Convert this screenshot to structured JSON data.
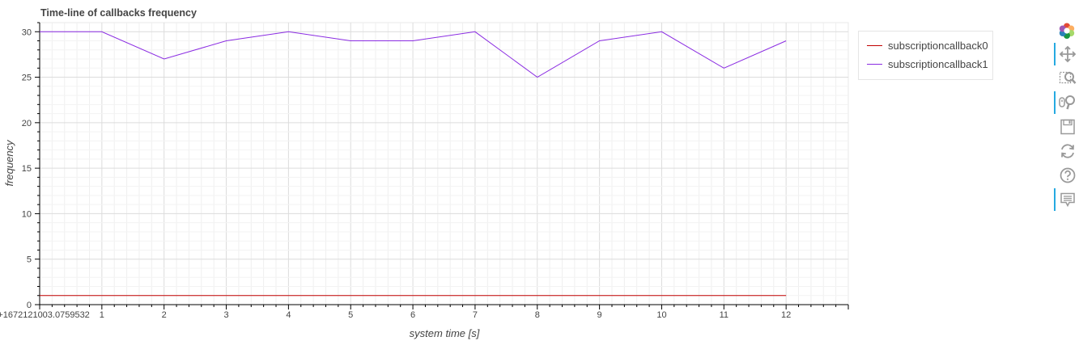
{
  "chart_data": {
    "type": "line",
    "title": "Time-line of callbacks frequency",
    "xlabel": "system time [s]",
    "ylabel": "frequency",
    "xlim": [
      0,
      13
    ],
    "ylim": [
      0,
      31
    ],
    "grid": true,
    "x_tick_origin_label": "0+1672121003.0759532",
    "x_ticks": [
      1,
      2,
      3,
      4,
      5,
      6,
      7,
      8,
      9,
      10,
      11,
      12
    ],
    "y_ticks": [
      0,
      5,
      10,
      15,
      20,
      25,
      30
    ],
    "legend_position": "top-right",
    "series": [
      {
        "name": "subscriptioncallback0",
        "color": "#c00000",
        "x": [
          0,
          1,
          2,
          3,
          4,
          5,
          6,
          7,
          8,
          9,
          10,
          11,
          12
        ],
        "values": [
          1,
          1,
          1,
          1,
          1,
          1,
          1,
          1,
          1,
          1,
          1,
          1,
          1
        ]
      },
      {
        "name": "subscriptioncallback1",
        "color": "#8a2be2",
        "x": [
          0,
          1,
          2,
          3,
          4,
          5,
          6,
          7,
          8,
          9,
          10,
          11,
          12
        ],
        "values": [
          30,
          30,
          27,
          29,
          30,
          29,
          29,
          30,
          25,
          29,
          30,
          26,
          29
        ]
      }
    ]
  },
  "toolbar": {
    "tools": [
      {
        "name": "bokeh-logo-icon",
        "active": false
      },
      {
        "name": "pan-tool-icon",
        "active": true
      },
      {
        "name": "box-zoom-tool-icon",
        "active": false
      },
      {
        "name": "wheel-zoom-tool-icon",
        "active": true
      },
      {
        "name": "save-tool-icon",
        "active": false
      },
      {
        "name": "reset-tool-icon",
        "active": false
      },
      {
        "name": "help-tool-icon",
        "active": false
      },
      {
        "name": "hover-tool-icon",
        "active": true
      }
    ],
    "active_color": "#26aae1"
  }
}
